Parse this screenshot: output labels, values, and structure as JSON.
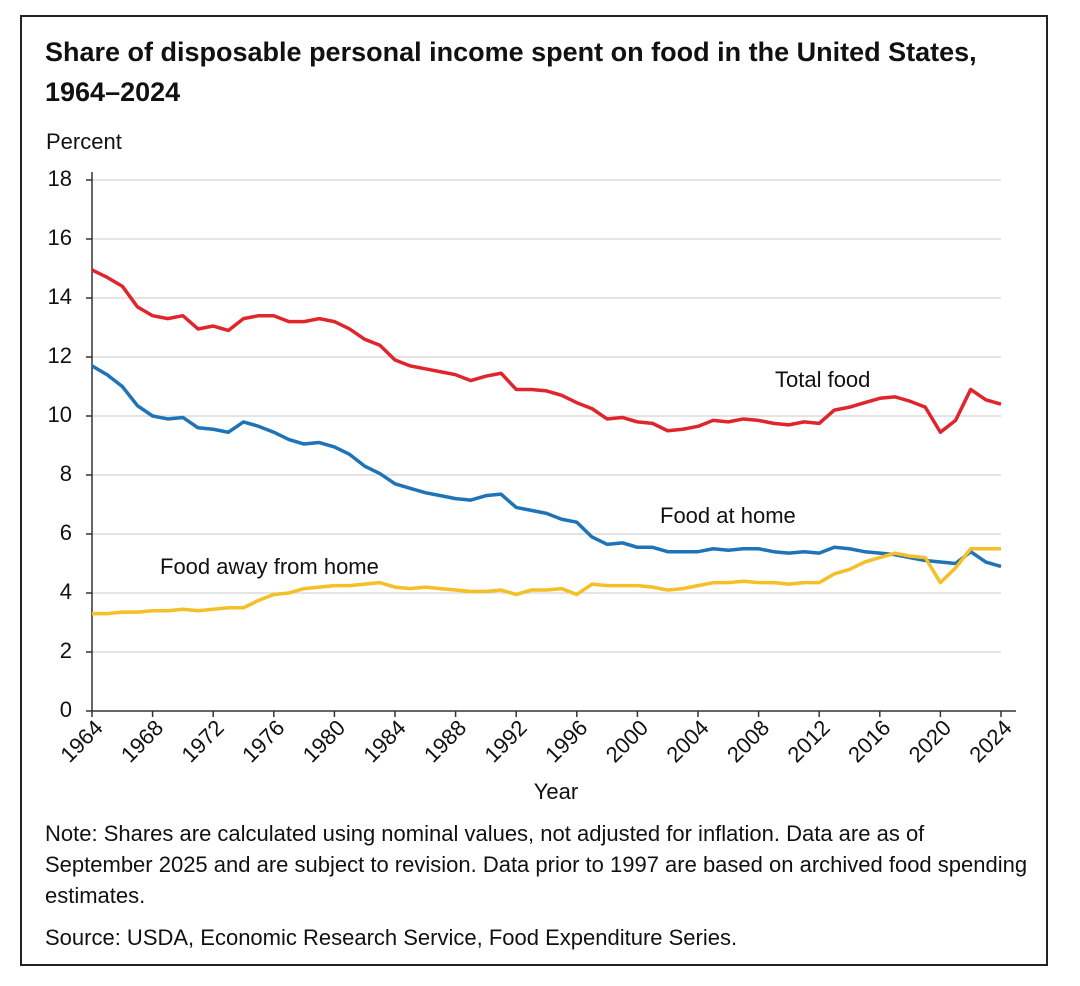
{
  "chart_data": {
    "type": "line",
    "title": "Share of disposable personal income spent on food in the United States, 1964–2024",
    "y_label": "Percent",
    "x_label": "Year",
    "note": "Note: Shares are calculated using nominal values, not adjusted for inflation. Data are as of September 2025 and are subject to revision. Data prior to 1997 are based on archived food spending estimates.",
    "source": "Source: USDA, Economic Research Service, Food Expenditure Series.",
    "x": [
      1964,
      1965,
      1966,
      1967,
      1968,
      1969,
      1970,
      1971,
      1972,
      1973,
      1974,
      1975,
      1976,
      1977,
      1978,
      1979,
      1980,
      1981,
      1982,
      1983,
      1984,
      1985,
      1986,
      1987,
      1988,
      1989,
      1990,
      1991,
      1992,
      1993,
      1994,
      1995,
      1996,
      1997,
      1998,
      1999,
      2000,
      2001,
      2002,
      2003,
      2004,
      2005,
      2006,
      2007,
      2008,
      2009,
      2010,
      2011,
      2012,
      2013,
      2014,
      2015,
      2016,
      2017,
      2018,
      2019,
      2020,
      2021,
      2022,
      2023,
      2024
    ],
    "xlim": [
      1964,
      2024
    ],
    "xticks": [
      1964,
      1968,
      1972,
      1976,
      1980,
      1984,
      1988,
      1992,
      1996,
      2000,
      2004,
      2008,
      2012,
      2016,
      2020,
      2024
    ],
    "ylim": [
      0,
      18
    ],
    "yticks": [
      0,
      2,
      4,
      6,
      8,
      10,
      12,
      14,
      16,
      18
    ],
    "grid": true,
    "series": [
      {
        "name": "Total food",
        "color": "#e0262d",
        "values": [
          14.95,
          14.7,
          14.4,
          13.7,
          13.4,
          13.3,
          13.4,
          12.95,
          13.05,
          12.9,
          13.3,
          13.4,
          13.4,
          13.2,
          13.2,
          13.3,
          13.2,
          12.95,
          12.6,
          12.4,
          11.9,
          11.7,
          11.6,
          11.5,
          11.4,
          11.2,
          11.35,
          11.45,
          10.9,
          10.9,
          10.85,
          10.7,
          10.45,
          10.25,
          9.9,
          9.95,
          9.8,
          9.75,
          9.5,
          9.55,
          9.65,
          9.85,
          9.8,
          9.9,
          9.85,
          9.75,
          9.7,
          9.8,
          9.75,
          10.2,
          10.3,
          10.45,
          10.6,
          10.65,
          10.5,
          10.3,
          9.45,
          9.85,
          10.9,
          10.55,
          10.4
        ]
      },
      {
        "name": "Food at home",
        "color": "#1f73b7",
        "values": [
          11.7,
          11.4,
          11.0,
          10.35,
          10.0,
          9.9,
          9.95,
          9.6,
          9.55,
          9.45,
          9.8,
          9.65,
          9.45,
          9.2,
          9.05,
          9.1,
          8.95,
          8.7,
          8.3,
          8.05,
          7.7,
          7.55,
          7.4,
          7.3,
          7.2,
          7.15,
          7.3,
          7.35,
          6.9,
          6.8,
          6.7,
          6.5,
          6.4,
          5.9,
          5.65,
          5.7,
          5.55,
          5.55,
          5.4,
          5.4,
          5.4,
          5.5,
          5.45,
          5.5,
          5.5,
          5.4,
          5.35,
          5.4,
          5.35,
          5.55,
          5.5,
          5.4,
          5.35,
          5.3,
          5.2,
          5.1,
          5.05,
          5.0,
          5.4,
          5.05,
          4.9
        ]
      },
      {
        "name": "Food away from home",
        "color": "#f4bf27",
        "values": [
          3.3,
          3.3,
          3.35,
          3.35,
          3.4,
          3.4,
          3.45,
          3.4,
          3.45,
          3.5,
          3.5,
          3.75,
          3.95,
          4.0,
          4.15,
          4.2,
          4.25,
          4.25,
          4.3,
          4.35,
          4.2,
          4.15,
          4.2,
          4.15,
          4.1,
          4.05,
          4.05,
          4.1,
          3.95,
          4.1,
          4.1,
          4.15,
          3.95,
          4.3,
          4.25,
          4.25,
          4.25,
          4.2,
          4.1,
          4.15,
          4.25,
          4.35,
          4.35,
          4.4,
          4.35,
          4.35,
          4.3,
          4.35,
          4.35,
          4.65,
          4.8,
          5.05,
          5.2,
          5.35,
          5.25,
          5.2,
          4.35,
          4.85,
          5.5,
          5.5,
          5.5
        ]
      }
    ]
  }
}
